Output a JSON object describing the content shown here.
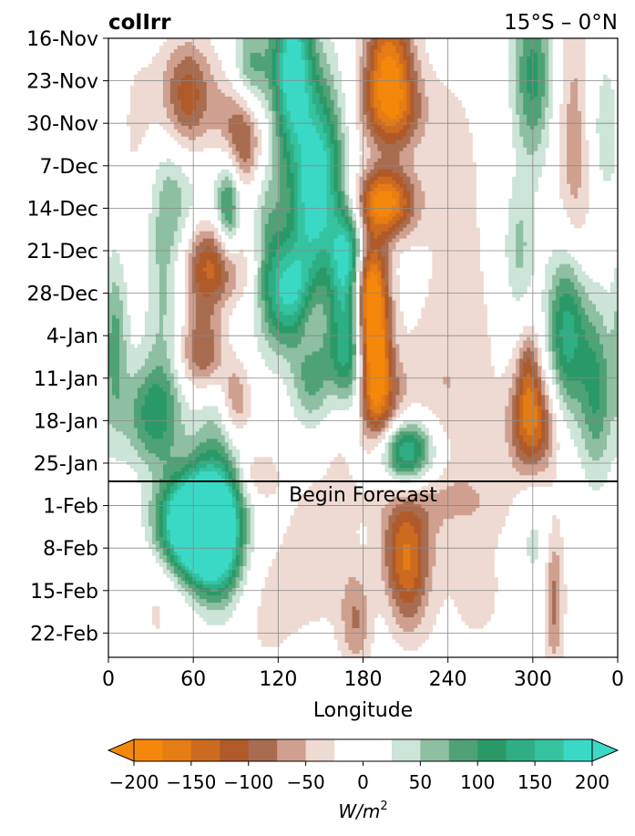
{
  "chart_data": {
    "type": "heatmap",
    "title": "colIrr",
    "region": "15°S – 0°N",
    "xlabel": "Longitude",
    "ylabel": "",
    "x_ticks": [
      "0",
      "60",
      "120",
      "180",
      "240",
      "300",
      "0"
    ],
    "x_tick_values": [
      0,
      60,
      120,
      180,
      240,
      300,
      360
    ],
    "xlim": [
      0,
      360
    ],
    "y_ticks": [
      "16-Nov",
      "23-Nov",
      "30-Nov",
      "7-Dec",
      "14-Dec",
      "21-Dec",
      "28-Dec",
      "4-Jan",
      "11-Jan",
      "18-Jan",
      "25-Jan",
      "1-Feb",
      "8-Feb",
      "15-Feb",
      "22-Feb"
    ],
    "y_tick_days": [
      0,
      7,
      14,
      21,
      28,
      35,
      42,
      49,
      56,
      63,
      70,
      77,
      84,
      91,
      98
    ],
    "ylim_days": [
      0,
      102
    ],
    "forecast_start_day": 73,
    "annotation": "Begin Forecast",
    "grid": true,
    "colorbar": {
      "label": "W/m²",
      "ticks": [
        "−200",
        "−150",
        "−100",
        "−50",
        "0",
        "50",
        "100",
        "150",
        "200"
      ],
      "tick_values": [
        -200,
        -150,
        -100,
        -50,
        0,
        50,
        100,
        150,
        200
      ],
      "levels": [
        -200,
        -175,
        -150,
        -125,
        -100,
        -75,
        -50,
        -25,
        25,
        50,
        75,
        100,
        125,
        150,
        175,
        200
      ],
      "colors": [
        "#f5880a",
        "#e57c14",
        "#cc6b20",
        "#b05a2a",
        "#a86c50",
        "#cfa090",
        "#eedad2",
        "#ffffff",
        "#cde4d8",
        "#8ebfa2",
        "#4ea276",
        "#2a9968",
        "#2fae85",
        "#35c3a0",
        "#3ad9c6"
      ],
      "under_color": "#f5880a",
      "over_color": "#3ad9c6",
      "extend": "both"
    },
    "blobs": [
      {
        "lon": 55,
        "day": 80,
        "value": 195,
        "dlon": 16,
        "dday": 5
      },
      {
        "lon": 72,
        "day": 78,
        "value": 190,
        "dlon": 15,
        "dday": 6
      },
      {
        "lon": 70,
        "day": 84,
        "value": 130,
        "dlon": 14,
        "dday": 5
      },
      {
        "lon": 80,
        "day": 88,
        "value": 60,
        "dlon": 12,
        "dday": 6
      },
      {
        "lon": 210,
        "day": 84,
        "value": -120,
        "dlon": 12,
        "dday": 6
      },
      {
        "lon": 212,
        "day": 92,
        "value": -60,
        "dlon": 10,
        "dday": 6
      },
      {
        "lon": 175,
        "day": 96,
        "value": -70,
        "dlon": 8,
        "dday": 6
      },
      {
        "lon": 315,
        "day": 92,
        "value": -85,
        "dlon": 5,
        "dday": 9
      },
      {
        "lon": 150,
        "day": 84,
        "value": -40,
        "dlon": 18,
        "dday": 10
      },
      {
        "lon": 300,
        "day": 82,
        "value": 40,
        "dlon": 10,
        "dday": 8
      },
      {
        "lon": 260,
        "day": 90,
        "value": -30,
        "dlon": 25,
        "dday": 12
      },
      {
        "lon": 35,
        "day": 92,
        "value": -30,
        "dlon": 14,
        "dday": 10
      },
      {
        "lon": 110,
        "day": 94,
        "value": -30,
        "dlon": 20,
        "dday": 10
      },
      {
        "lon": 235,
        "day": 76,
        "value": -35,
        "dlon": 40,
        "dday": 4
      },
      {
        "lon": 198,
        "day": 3,
        "value": -150,
        "dlon": 12,
        "dday": 6
      },
      {
        "lon": 200,
        "day": 12,
        "value": -140,
        "dlon": 15,
        "dday": 5
      },
      {
        "lon": 195,
        "day": 27,
        "value": -190,
        "dlon": 15,
        "dday": 4
      },
      {
        "lon": 183,
        "day": 40,
        "value": -180,
        "dlon": 9,
        "dday": 6
      },
      {
        "lon": 188,
        "day": 52,
        "value": -200,
        "dlon": 8,
        "dday": 8
      },
      {
        "lon": 195,
        "day": 62,
        "value": -80,
        "dlon": 12,
        "dday": 6
      },
      {
        "lon": 165,
        "day": 60,
        "value": -60,
        "dlon": 8,
        "dday": 8
      },
      {
        "lon": 140,
        "day": 46,
        "value": -90,
        "dlon": 8,
        "dday": 6
      },
      {
        "lon": 75,
        "day": 38,
        "value": -200,
        "dlon": 16,
        "dday": 6
      },
      {
        "lon": 70,
        "day": 52,
        "value": -150,
        "dlon": 14,
        "dday": 5
      },
      {
        "lon": 90,
        "day": 60,
        "value": -110,
        "dlon": 8,
        "dday": 5
      },
      {
        "lon": 95,
        "day": 15,
        "value": -150,
        "dlon": 12,
        "dday": 8
      },
      {
        "lon": 55,
        "day": 10,
        "value": -130,
        "dlon": 14,
        "dday": 7
      },
      {
        "lon": 235,
        "day": 60,
        "value": -40,
        "dlon": 25,
        "dday": 10
      },
      {
        "lon": 300,
        "day": 64,
        "value": -140,
        "dlon": 12,
        "dday": 6
      },
      {
        "lon": 297,
        "day": 55,
        "value": -80,
        "dlon": 6,
        "dday": 6
      },
      {
        "lon": 330,
        "day": 20,
        "value": -70,
        "dlon": 10,
        "dday": 20
      },
      {
        "lon": 105,
        "day": 72,
        "value": -60,
        "dlon": 10,
        "dday": 3
      },
      {
        "lon": 130,
        "day": 5,
        "value": 200,
        "dlon": 10,
        "dday": 10
      },
      {
        "lon": 150,
        "day": 18,
        "value": 120,
        "dlon": 12,
        "dday": 10
      },
      {
        "lon": 170,
        "day": 36,
        "value": 195,
        "dlon": 9,
        "dday": 6
      },
      {
        "lon": 133,
        "day": 42,
        "value": 200,
        "dlon": 11,
        "dday": 6
      },
      {
        "lon": 145,
        "day": 28,
        "value": 130,
        "dlon": 12,
        "dday": 8
      },
      {
        "lon": 168,
        "day": 52,
        "value": 180,
        "dlon": 9,
        "dday": 8
      },
      {
        "lon": 210,
        "day": 68,
        "value": 190,
        "dlon": 14,
        "dday": 4
      },
      {
        "lon": 143,
        "day": 55,
        "value": 100,
        "dlon": 10,
        "dday": 6
      },
      {
        "lon": 115,
        "day": 40,
        "value": 80,
        "dlon": 8,
        "dday": 8
      },
      {
        "lon": 85,
        "day": 28,
        "value": 120,
        "dlon": 6,
        "dday": 6
      },
      {
        "lon": 80,
        "day": 50,
        "value": 90,
        "dlon": 14,
        "dday": 20
      },
      {
        "lon": 40,
        "day": 40,
        "value": 60,
        "dlon": 10,
        "dday": 20
      },
      {
        "lon": 30,
        "day": 62,
        "value": 100,
        "dlon": 14,
        "dday": 6
      },
      {
        "lon": 325,
        "day": 48,
        "value": 160,
        "dlon": 10,
        "dday": 10
      },
      {
        "lon": 345,
        "day": 58,
        "value": 100,
        "dlon": 8,
        "dday": 10
      },
      {
        "lon": 300,
        "day": 6,
        "value": 110,
        "dlon": 10,
        "dday": 10
      },
      {
        "lon": 350,
        "day": 15,
        "value": 50,
        "dlon": 10,
        "dday": 10
      },
      {
        "lon": 5,
        "day": 50,
        "value": 80,
        "dlon": 6,
        "dday": 10
      },
      {
        "lon": 100,
        "day": 6,
        "value": 130,
        "dlon": 10,
        "dday": 6
      },
      {
        "lon": 110,
        "day": 25,
        "value": 50,
        "dlon": 10,
        "dday": 8
      },
      {
        "lon": 50,
        "day": 26,
        "value": 40,
        "dlon": 12,
        "dday": 10
      },
      {
        "lon": 290,
        "day": 35,
        "value": 60,
        "dlon": 8,
        "dday": 8
      },
      {
        "lon": 20,
        "day": 15,
        "value": -30,
        "dlon": 14,
        "dday": 12
      },
      {
        "lon": 245,
        "day": 20,
        "value": -30,
        "dlon": 18,
        "dday": 15
      },
      {
        "lon": 250,
        "day": 45,
        "value": -20,
        "dlon": 25,
        "dday": 12
      }
    ]
  }
}
